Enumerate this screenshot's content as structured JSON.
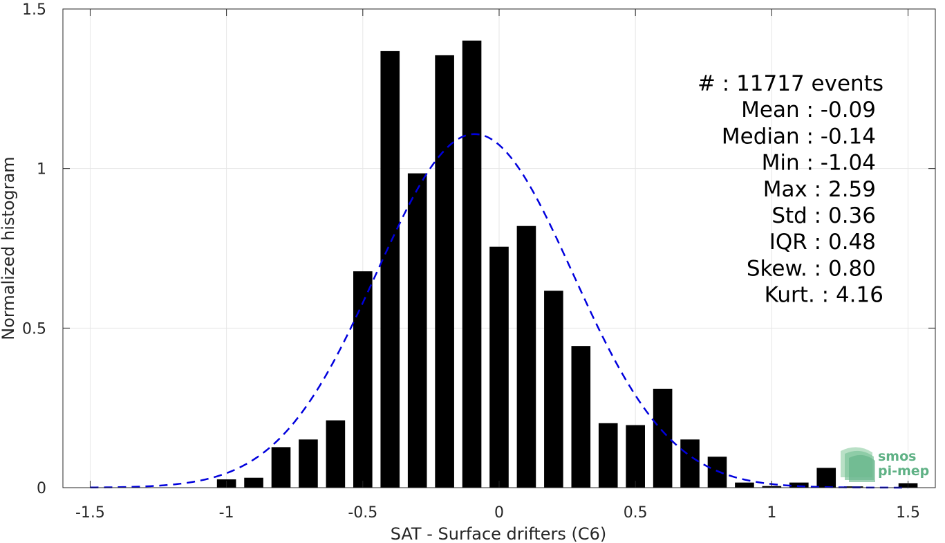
{
  "chart_data": {
    "type": "bar",
    "xlabel": "SAT - Surface drifters (C6)",
    "ylabel": "Normalized histogram",
    "xlim": [
      -1.6,
      1.6
    ],
    "ylim": [
      0,
      1.5
    ],
    "xticks": [
      -1.5,
      -1,
      -0.5,
      0,
      0.5,
      1,
      1.5
    ],
    "xtick_labels": [
      "-1.5",
      "-1",
      "-0.5",
      "0",
      "0.5",
      "1",
      "1.5"
    ],
    "yticks": [
      0,
      0.5,
      1,
      1.5
    ],
    "ytick_labels": [
      "0",
      "0.5",
      "1",
      "1.5"
    ],
    "grid": true,
    "bar_color": "#000000",
    "fit_color": "#0000dd",
    "bin_width": 0.1,
    "bins": [
      -1.0,
      -0.9,
      -0.8,
      -0.7,
      -0.6,
      -0.5,
      -0.4,
      -0.3,
      -0.2,
      -0.1,
      0.0,
      0.1,
      0.2,
      0.3,
      0.4,
      0.5,
      0.6,
      0.7,
      0.8,
      0.9,
      1.0,
      1.1,
      1.2,
      1.3,
      1.5
    ],
    "values": [
      0.026,
      0.031,
      0.127,
      0.151,
      0.211,
      0.678,
      1.368,
      0.985,
      1.355,
      1.401,
      0.755,
      0.82,
      0.617,
      0.444,
      0.202,
      0.196,
      0.31,
      0.151,
      0.097,
      0.016,
      0.005,
      0.016,
      0.062,
      0.004,
      0.014
    ],
    "fit": {
      "type": "gaussian",
      "style": "dashed",
      "mean": -0.09,
      "std": 0.36
    },
    "annotations": [
      "#  : 11717 events",
      "Mean : -0.09",
      "Median : -0.14",
      "Min : -1.04",
      "Max : 2.59",
      "Std : 0.36",
      "IQR : 0.48",
      "Skew. : 0.80",
      "Kurt. : 4.16"
    ]
  },
  "logo": {
    "line1": "smos",
    "line2": "pi-mep"
  }
}
